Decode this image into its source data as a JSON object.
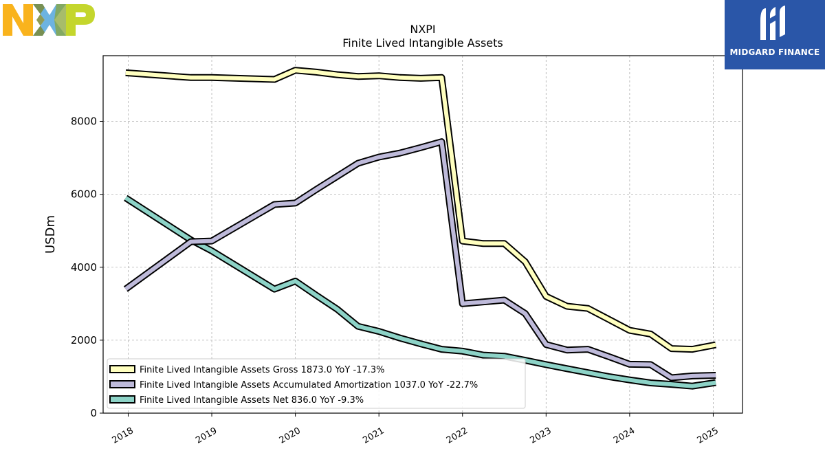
{
  "brand": {
    "left_logo": "NXP",
    "right_logo": "MIDGARD FINANCE"
  },
  "colors": {
    "gross": "#ffffbf",
    "amort": "#bebada",
    "net": "#8dd3c7",
    "grid": "#b0b0b0",
    "mf_bg": "#2a56a8"
  },
  "chart_data": {
    "type": "line",
    "title": "NXPI",
    "subtitle": "Finite Lived Intangible Assets",
    "ylabel": "USDm",
    "xlabel": "",
    "xlim": [
      2017.7,
      2025.35
    ],
    "ylim": [
      0,
      9800
    ],
    "x_ticks": [
      "2018",
      "2019",
      "2020",
      "2021",
      "2022",
      "2023",
      "2024",
      "2025"
    ],
    "y_ticks": [
      "0",
      "2000",
      "4000",
      "6000",
      "8000"
    ],
    "grid": true,
    "legend_position": "lower-left",
    "x": [
      2017.97,
      2018.75,
      2019.0,
      2019.75,
      2020.0,
      2020.25,
      2020.5,
      2020.75,
      2021.0,
      2021.25,
      2021.5,
      2021.75,
      2022.0,
      2022.25,
      2022.5,
      2022.75,
      2023.0,
      2023.25,
      2023.5,
      2023.75,
      2024.0,
      2024.25,
      2024.5,
      2024.75,
      2025.03
    ],
    "series": [
      {
        "name": "Finite Lived Intangible Assets Gross",
        "legend": "Finite Lived Intangible Assets Gross  1873.0 YoY -17.3%",
        "values": [
          9330,
          9200,
          9200,
          9150,
          9400,
          9350,
          9280,
          9230,
          9250,
          9200,
          9180,
          9200,
          4720,
          4650,
          4650,
          4150,
          3200,
          2930,
          2870,
          2570,
          2270,
          2170,
          1770,
          1750,
          1873
        ]
      },
      {
        "name": "Finite Lived Intangible Assets Accumulated Amortization",
        "legend": "Finite Lived Intangible Assets Accumulated Amortization  1037.0 YoY -22.7%",
        "values": [
          3400,
          4700,
          4720,
          5720,
          5760,
          6130,
          6490,
          6850,
          7020,
          7130,
          7280,
          7440,
          3000,
          3050,
          3100,
          2730,
          1880,
          1730,
          1750,
          1550,
          1340,
          1330,
          970,
          1020,
          1037
        ]
      },
      {
        "name": "Finite Lived Intangible Assets Net",
        "legend": "Finite Lived Intangible Assets Net  836.0 YoY -9.3%",
        "values": [
          5900,
          4750,
          4450,
          3400,
          3620,
          3230,
          2850,
          2380,
          2240,
          2060,
          1900,
          1750,
          1700,
          1590,
          1560,
          1450,
          1330,
          1220,
          1110,
          1000,
          910,
          830,
          790,
          740,
          836
        ]
      }
    ]
  }
}
